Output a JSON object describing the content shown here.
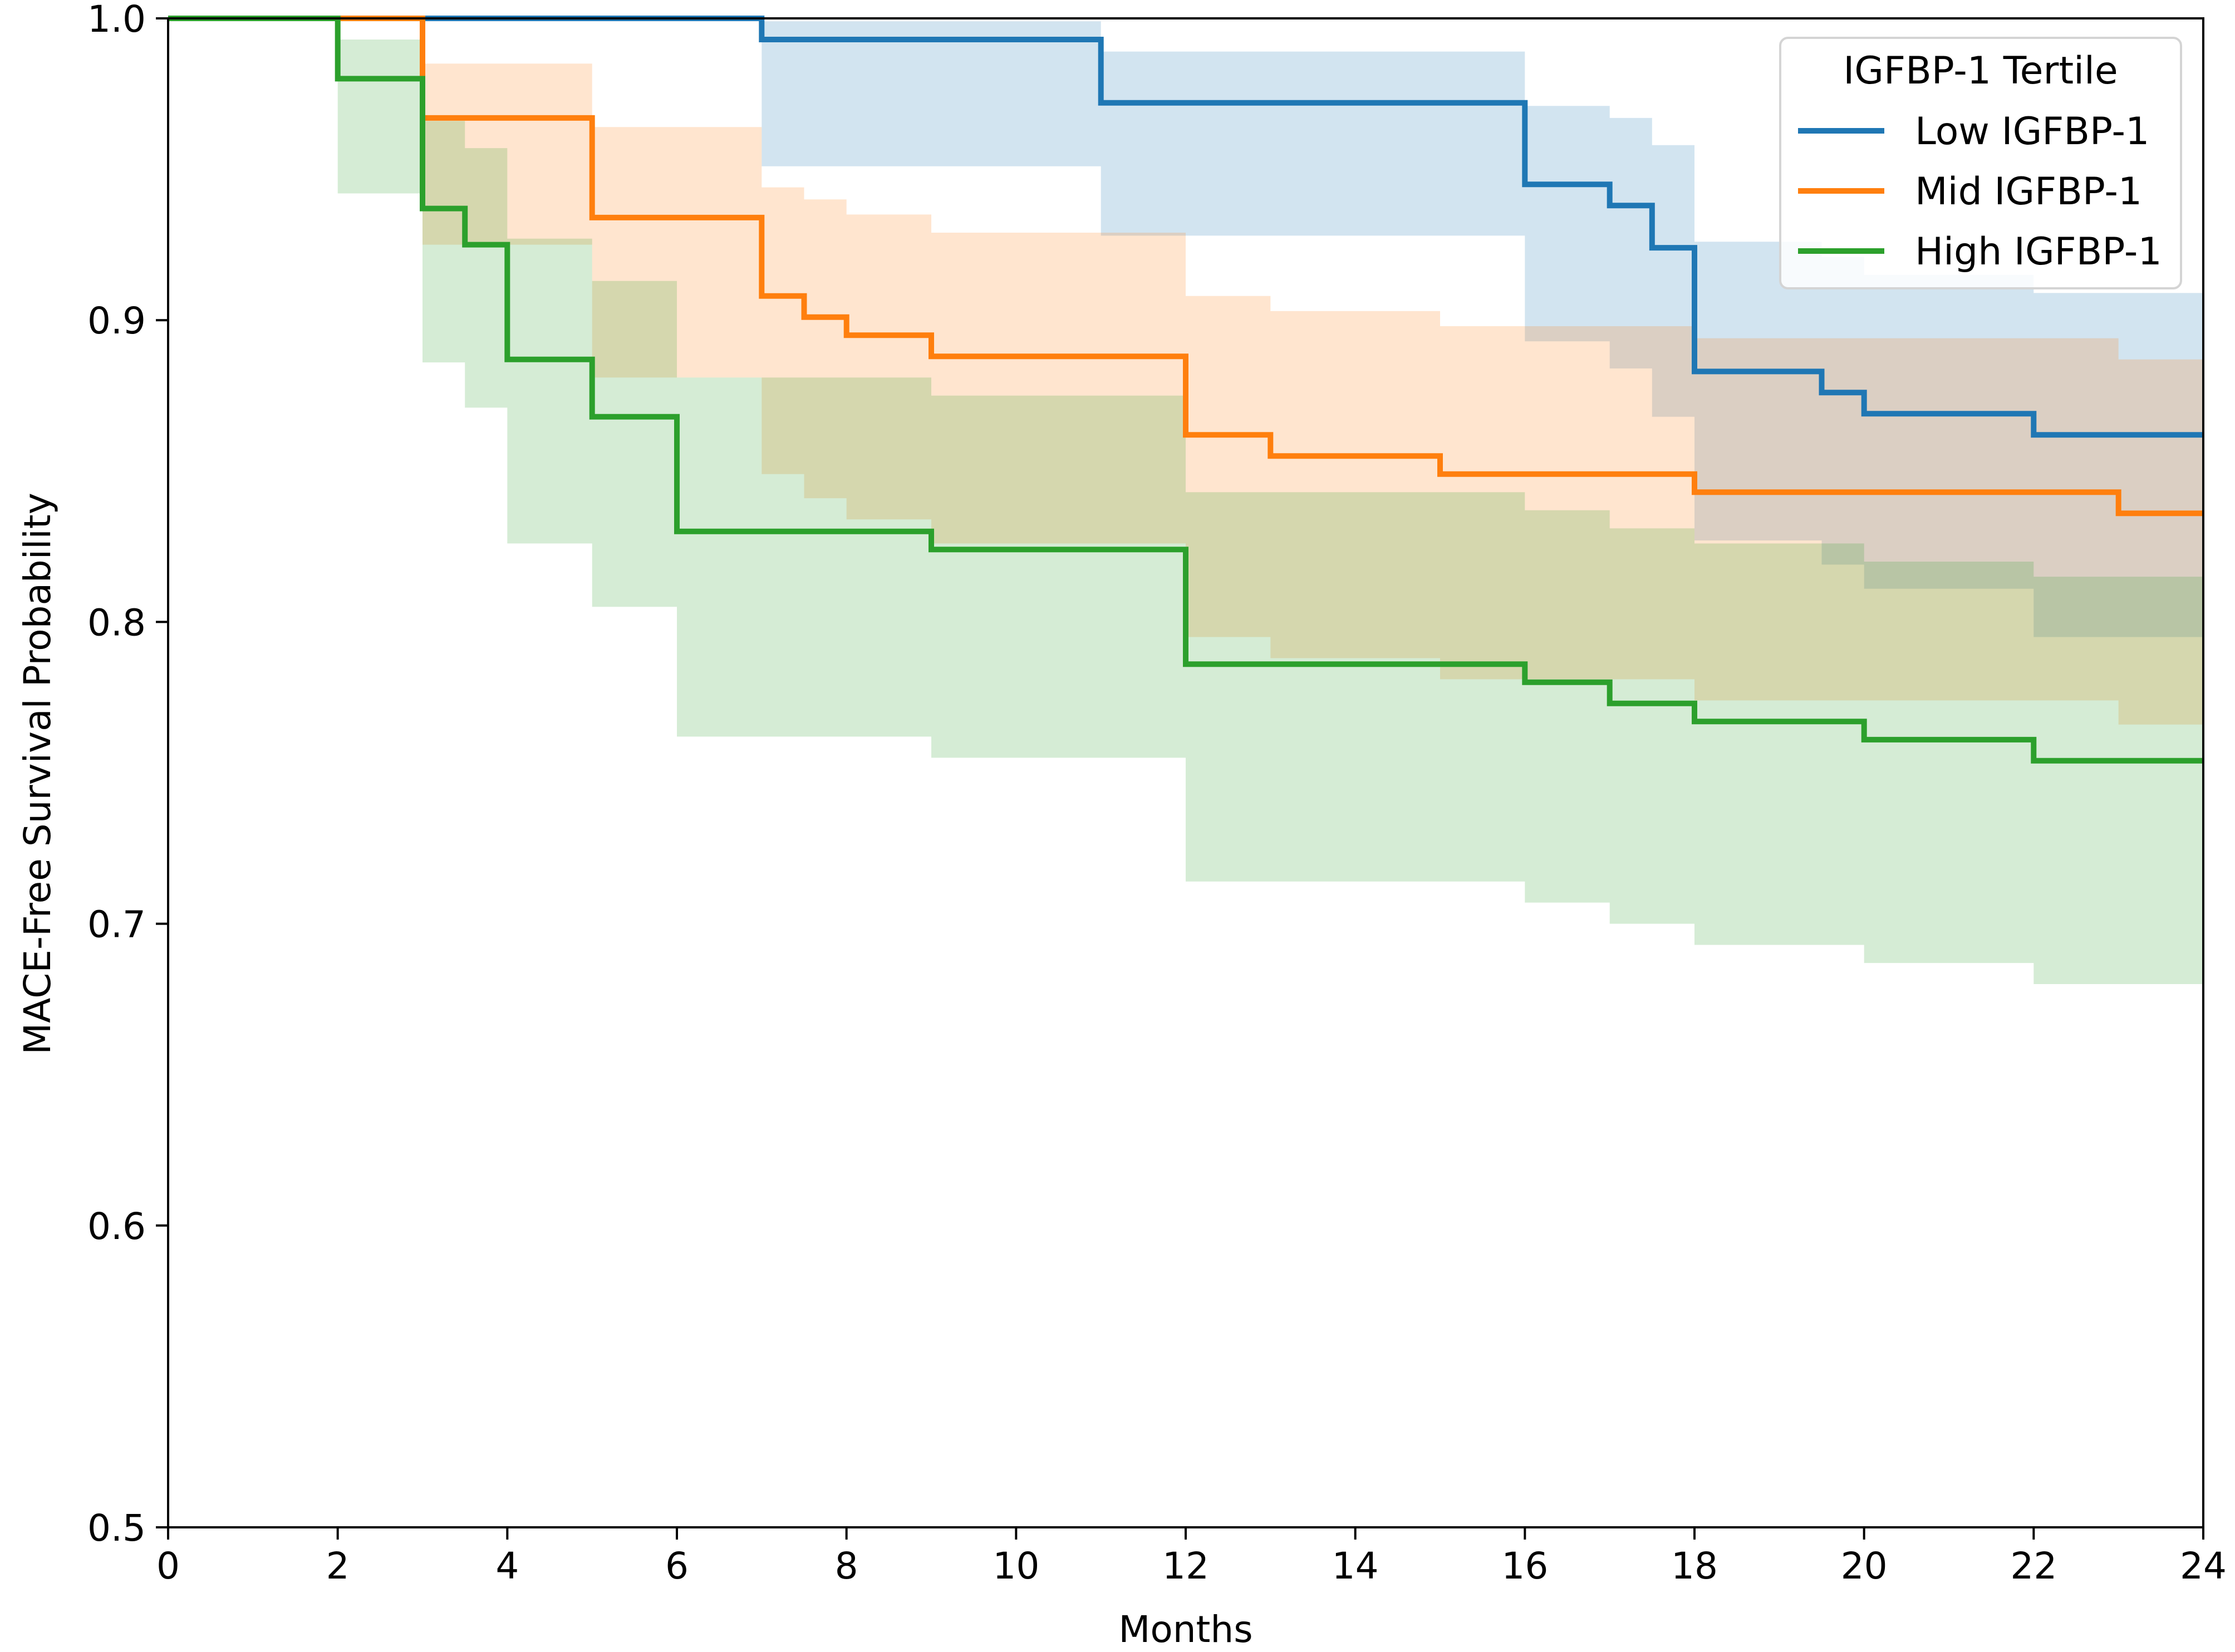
{
  "chart_data": {
    "type": "line",
    "subtype": "step-survival",
    "title": "",
    "xlabel": "Months",
    "ylabel": "MACE-Free Survival Probability",
    "xlim": [
      0,
      24
    ],
    "ylim": [
      0.5,
      1.0
    ],
    "xticks": [
      0,
      2,
      4,
      6,
      8,
      10,
      12,
      14,
      16,
      18,
      20,
      22,
      24
    ],
    "yticks": [
      0.5,
      0.6,
      0.7,
      0.8,
      0.9,
      1.0
    ],
    "xtick_labels": [
      "0",
      "2",
      "4",
      "6",
      "8",
      "10",
      "12",
      "14",
      "16",
      "18",
      "20",
      "22",
      "24"
    ],
    "ytick_labels": [
      "0.5",
      "0.6",
      "0.7",
      "0.8",
      "0.9",
      "1.0"
    ],
    "grid": false,
    "legend": {
      "title": "IGFBP-1 Tertile",
      "placement": "top-right"
    },
    "series": [
      {
        "name": "Low IGFBP-1",
        "color": "#1f77b4",
        "steps": [
          [
            0,
            1.0
          ],
          [
            7,
            0.993
          ],
          [
            11,
            0.972
          ],
          [
            16,
            0.945
          ],
          [
            17,
            0.938
          ],
          [
            17.5,
            0.924
          ],
          [
            18,
            0.883
          ],
          [
            19.5,
            0.876
          ],
          [
            20,
            0.869
          ],
          [
            22,
            0.862
          ],
          [
            24,
            0.862
          ]
        ],
        "ci_upper": [
          [
            0,
            1.0
          ],
          [
            7,
            0.999
          ],
          [
            11,
            0.989
          ],
          [
            16,
            0.971
          ],
          [
            17,
            0.967
          ],
          [
            17.5,
            0.958
          ],
          [
            18,
            0.926
          ],
          [
            19.5,
            0.921
          ],
          [
            20,
            0.915
          ],
          [
            22,
            0.909
          ],
          [
            24,
            0.909
          ]
        ],
        "ci_lower": [
          [
            0,
            1.0
          ],
          [
            7,
            0.951
          ],
          [
            11,
            0.928
          ],
          [
            16,
            0.893
          ],
          [
            17,
            0.884
          ],
          [
            17.5,
            0.868
          ],
          [
            18,
            0.827
          ],
          [
            19.5,
            0.819
          ],
          [
            20,
            0.811
          ],
          [
            22,
            0.795
          ],
          [
            24,
            0.795
          ]
        ]
      },
      {
        "name": "Mid IGFBP-1",
        "color": "#ff7f0e",
        "steps": [
          [
            0,
            1.0
          ],
          [
            3,
            0.967
          ],
          [
            5,
            0.934
          ],
          [
            7,
            0.908
          ],
          [
            7.5,
            0.901
          ],
          [
            8,
            0.895
          ],
          [
            9,
            0.888
          ],
          [
            12,
            0.862
          ],
          [
            13,
            0.855
          ],
          [
            15,
            0.849
          ],
          [
            18,
            0.843
          ],
          [
            23,
            0.836
          ],
          [
            24,
            0.836
          ]
        ],
        "ci_upper": [
          [
            0,
            1.0
          ],
          [
            2,
            1.0
          ],
          [
            3,
            0.985
          ],
          [
            5,
            0.964
          ],
          [
            7,
            0.944
          ],
          [
            7.5,
            0.94
          ],
          [
            8,
            0.935
          ],
          [
            9,
            0.929
          ],
          [
            12,
            0.908
          ],
          [
            13,
            0.903
          ],
          [
            15,
            0.898
          ],
          [
            18,
            0.894
          ],
          [
            23,
            0.887
          ],
          [
            24,
            0.887
          ]
        ],
        "ci_lower": [
          [
            0,
            1.0
          ],
          [
            2,
            1.0
          ],
          [
            3,
            0.925
          ],
          [
            5,
            0.881
          ],
          [
            7,
            0.849
          ],
          [
            7.5,
            0.841
          ],
          [
            8,
            0.834
          ],
          [
            9,
            0.826
          ],
          [
            12,
            0.795
          ],
          [
            13,
            0.788
          ],
          [
            15,
            0.781
          ],
          [
            18,
            0.774
          ],
          [
            23,
            0.766
          ],
          [
            24,
            0.766
          ]
        ]
      },
      {
        "name": "High IGFBP-1",
        "color": "#2ca02c",
        "steps": [
          [
            0,
            1.0
          ],
          [
            2,
            0.98
          ],
          [
            3,
            0.937
          ],
          [
            3.5,
            0.925
          ],
          [
            4,
            0.887
          ],
          [
            5,
            0.868
          ],
          [
            6,
            0.83
          ],
          [
            9,
            0.824
          ],
          [
            12,
            0.786
          ],
          [
            16,
            0.78
          ],
          [
            17,
            0.773
          ],
          [
            18,
            0.767
          ],
          [
            20,
            0.761
          ],
          [
            22,
            0.754
          ],
          [
            24,
            0.754
          ]
        ],
        "ci_upper": [
          [
            0,
            1.0
          ],
          [
            2,
            0.993
          ],
          [
            3,
            0.966
          ],
          [
            3.5,
            0.957
          ],
          [
            4,
            0.927
          ],
          [
            5,
            0.913
          ],
          [
            6,
            0.881
          ],
          [
            9,
            0.875
          ],
          [
            12,
            0.843
          ],
          [
            16,
            0.837
          ],
          [
            17,
            0.831
          ],
          [
            18,
            0.826
          ],
          [
            20,
            0.82
          ],
          [
            22,
            0.815
          ],
          [
            24,
            0.815
          ]
        ],
        "ci_lower": [
          [
            0,
            1.0
          ],
          [
            2,
            0.942
          ],
          [
            3,
            0.886
          ],
          [
            3.5,
            0.871
          ],
          [
            4,
            0.826
          ],
          [
            5,
            0.805
          ],
          [
            6,
            0.762
          ],
          [
            9,
            0.755
          ],
          [
            12,
            0.714
          ],
          [
            16,
            0.707
          ],
          [
            17,
            0.7
          ],
          [
            18,
            0.693
          ],
          [
            20,
            0.687
          ],
          [
            22,
            0.68
          ],
          [
            24,
            0.68
          ]
        ]
      }
    ]
  }
}
